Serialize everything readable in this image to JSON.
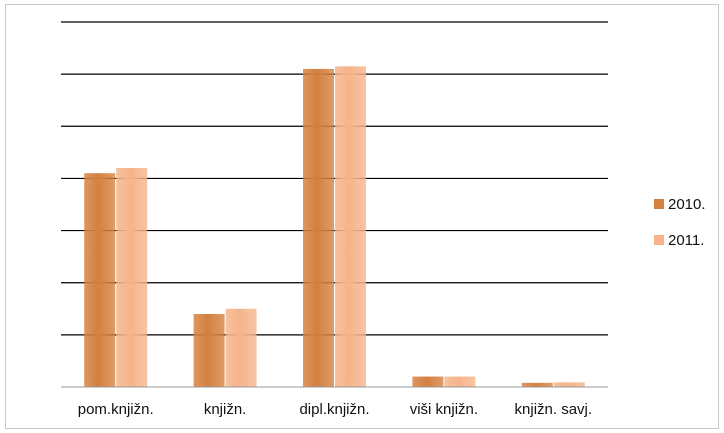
{
  "chart_data": {
    "type": "bar",
    "title": "",
    "xlabel": "",
    "ylabel": "",
    "categories": [
      "pom.knjižn.",
      "knjižn.",
      "dipl.knjižn.",
      "viši knjižn.",
      "knjižn. savj."
    ],
    "series": [
      {
        "name": "2010.",
        "values": [
          4.1,
          1.4,
          6.1,
          0.2,
          0.08
        ],
        "color": "#d4803f"
      },
      {
        "name": "2011.",
        "values": [
          4.2,
          1.5,
          6.15,
          0.2,
          0.09
        ],
        "color": "#f5b48a"
      }
    ],
    "ylim": [
      0,
      7
    ],
    "y_gridlines": [
      1,
      2,
      3,
      4,
      5,
      6,
      7
    ],
    "y_tick_labels_shown": false,
    "grid": true,
    "legend_position": "right"
  }
}
